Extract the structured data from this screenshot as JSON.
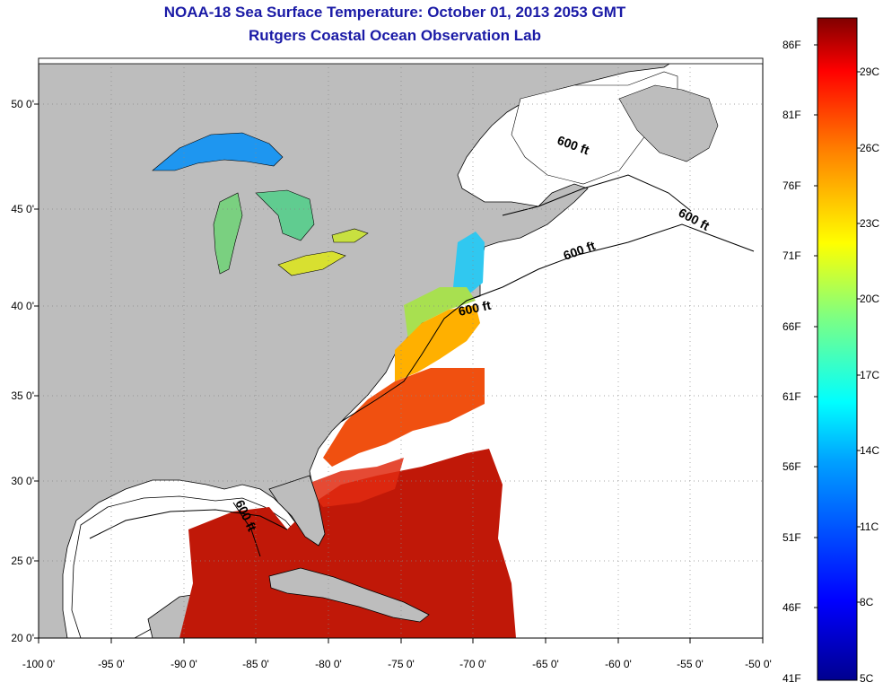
{
  "title": {
    "line1": "NOAA-18 Sea Surface Temperature:  October 01, 2013 2053 GMT",
    "line2": "Rutgers Coastal Ocean Observation Lab"
  },
  "axes": {
    "lat_ticks": [
      "50 0'",
      "45 0'",
      "40 0'",
      "35 0'",
      "30 0'",
      "25 0'",
      "20 0'"
    ],
    "lon_ticks": [
      "-100 0'",
      "-95 0'",
      "-90 0'",
      "-85 0'",
      "-80 0'",
      "-75 0'",
      "-70 0'",
      "-65 0'",
      "-60 0'",
      "-55 0'",
      "-50 0'"
    ]
  },
  "contour_labels": [
    "600 ft",
    "600 ft",
    "600 ft",
    "600 ft",
    "600 ft"
  ],
  "colorbar": {
    "fahrenheit": [
      "86F",
      "81F",
      "76F",
      "71F",
      "66F",
      "61F",
      "56F",
      "51F",
      "46F",
      "41F"
    ],
    "celsius": [
      "29C",
      "26C",
      "23C",
      "20C",
      "17C",
      "14C",
      "11C",
      "8C",
      "5C"
    ],
    "colors": [
      "#00008f",
      "#0000ff",
      "#0080ff",
      "#00ffff",
      "#80ff80",
      "#ffff00",
      "#ff8000",
      "#ff0000",
      "#800000"
    ]
  },
  "map_colors": {
    "land": "#bdbdbd",
    "ocean": "#ffffff",
    "cold_water": "#00b4ff",
    "cool_water": "#60e080",
    "mid_water": "#ffd000",
    "warm_water": "#ff5a00",
    "hot_water": "#c00000"
  }
}
